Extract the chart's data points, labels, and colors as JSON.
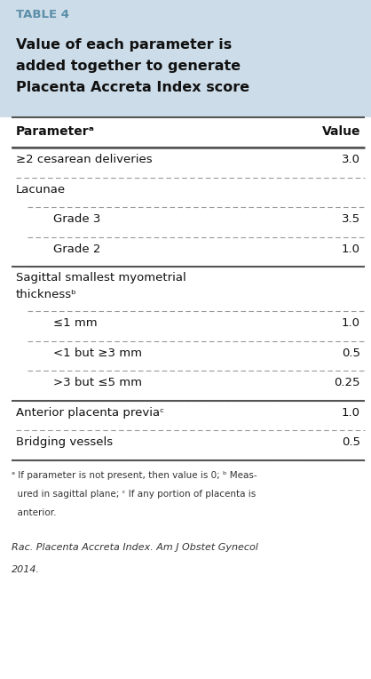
{
  "table_label": "TABLE 4",
  "title_lines": [
    "Value of each parameter is",
    "added together to generate",
    "Placenta Accreta Index score"
  ],
  "header_col1": "Parameterᵃ",
  "header_col2": "Value",
  "rows": [
    {
      "param": "≥2 cesarean deliveries",
      "sup": "",
      "value": "3.0",
      "indent": 0,
      "bold": false,
      "line_above": "solid",
      "line_below": "dashed",
      "multiline": false
    },
    {
      "param": "Lacunae",
      "sup": "",
      "value": "",
      "indent": 0,
      "bold": false,
      "line_above": "",
      "line_below": "",
      "multiline": false
    },
    {
      "param": "    Grade 3",
      "sup": "",
      "value": "3.5",
      "indent": 1,
      "bold": false,
      "line_above": "dashed",
      "line_below": "dashed",
      "multiline": false
    },
    {
      "param": "    Grade 2",
      "sup": "",
      "value": "1.0",
      "indent": 1,
      "bold": false,
      "line_above": "",
      "line_below": "dashed",
      "multiline": false
    },
    {
      "param": "Sagittal smallest myometrial",
      "sup": "",
      "value": "",
      "indent": 0,
      "bold": false,
      "line_above": "solid",
      "line_below": "",
      "multiline": true,
      "param2": "thicknessᵇ"
    },
    {
      "param": "    ≤1 mm",
      "sup": "",
      "value": "1.0",
      "indent": 1,
      "bold": false,
      "line_above": "dashed",
      "line_below": "dashed",
      "multiline": false
    },
    {
      "param": "    <1 but ≥3 mm",
      "sup": "",
      "value": "0.5",
      "indent": 1,
      "bold": false,
      "line_above": "",
      "line_below": "dashed",
      "multiline": false
    },
    {
      "param": "    >3 but ≤5 mm",
      "sup": "",
      "value": "0.25",
      "indent": 1,
      "bold": false,
      "line_above": "",
      "line_below": "dashed",
      "multiline": false
    },
    {
      "param": "Anterior placenta previaᶜ",
      "sup": "",
      "value": "1.0",
      "indent": 0,
      "bold": false,
      "line_above": "solid",
      "line_below": "dashed",
      "multiline": false
    },
    {
      "param": "Bridging vessels",
      "sup": "",
      "value": "0.5",
      "indent": 0,
      "bold": false,
      "line_above": "",
      "line_below": "dashed",
      "multiline": false
    }
  ],
  "footnote_lines": [
    "ᵃ If parameter is not present, then value is 0; ᵇ Meas-",
    "  ured in sagittal plane; ᶜ If any portion of placenta is",
    "  anterior."
  ],
  "citation_lines": [
    "Rac. Placenta Accreta Index. Am J Obstet Gynecol",
    "2014."
  ],
  "bg_top": "#ccdce8",
  "bg_title": "#ccdce8",
  "label_color": "#5b8fa8",
  "title_color": "#111111",
  "body_bg": "#ffffff",
  "line_solid_color": "#555555",
  "line_dashed_color": "#999999",
  "text_color": "#111111",
  "footnote_color": "#333333"
}
